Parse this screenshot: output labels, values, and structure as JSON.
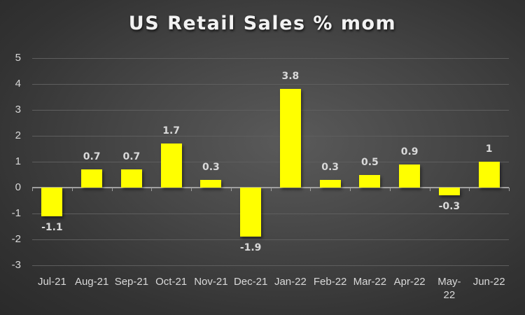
{
  "chart_data": {
    "type": "bar",
    "title": "US Retail Sales % mom",
    "xlabel": "",
    "ylabel": "",
    "categories": [
      "Jul-21",
      "Aug-21",
      "Sep-21",
      "Oct-21",
      "Nov-21",
      "Dec-21",
      "Jan-22",
      "Feb-22",
      "Mar-22",
      "Apr-22",
      "May-22",
      "Jun-22"
    ],
    "values": [
      -1.1,
      0.7,
      0.7,
      1.7,
      0.3,
      -1.9,
      3.8,
      0.3,
      0.5,
      0.9,
      -0.3,
      1
    ],
    "data_labels": [
      "-1.1",
      "0.7",
      "0.7",
      "1.7",
      "0.3",
      "-1.9",
      "3.8",
      "0.3",
      "0.5",
      "0.9",
      "-0.3",
      "1"
    ],
    "ylim": [
      -3,
      5
    ],
    "yticks": [
      "5",
      "4",
      "3",
      "2",
      "1",
      "0",
      "-1",
      "-2",
      "-3"
    ],
    "grid": true,
    "legend": null,
    "colors": {
      "bar": "#ffff00",
      "background": "#404040",
      "text": "#d9d9d9"
    }
  }
}
